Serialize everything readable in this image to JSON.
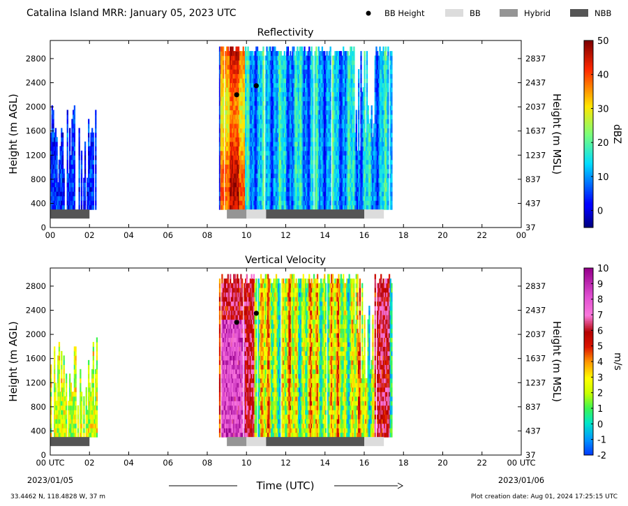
{
  "header": {
    "title": "Catalina Island MRR:  January 05, 2023 UTC",
    "legend": [
      {
        "label": "BB Height",
        "kind": "dot",
        "color": "#000000"
      },
      {
        "label": "BB",
        "kind": "box",
        "color": "#dcdcdc"
      },
      {
        "label": "Hybrid",
        "kind": "box",
        "color": "#959595"
      },
      {
        "label": "NBB",
        "kind": "box",
        "color": "#555555"
      }
    ]
  },
  "footer": {
    "location": "33.4462 N, 118.4828 W, 37 m",
    "creation": "Plot creation date: Aug 01, 2024 17:25:15 UTC",
    "xlabel": "Time (UTC)",
    "date_start": "2023/01/05",
    "date_end": "2023/01/06"
  },
  "chart_data": [
    {
      "type": "heatmap",
      "title": "Reflectivity",
      "ylabel": "Height (m AGL)",
      "y2label": "Height (m MSL)",
      "xlim": [
        0,
        24
      ],
      "ylim": [
        0,
        3100
      ],
      "xticks": [
        "00",
        "02",
        "04",
        "06",
        "08",
        "10",
        "12",
        "14",
        "16",
        "18",
        "20",
        "22",
        "00"
      ],
      "yticks": [
        0,
        400,
        800,
        1200,
        1600,
        2000,
        2400,
        2800
      ],
      "y2ticks": [
        "37",
        "437",
        "837",
        "1237",
        "1637",
        "2037",
        "2437",
        "2837"
      ],
      "colorbar": {
        "label": "dBZ",
        "min": -5,
        "max": 50,
        "ticks": [
          0,
          10,
          20,
          30,
          40,
          50
        ]
      },
      "bb_height_points": [
        {
          "x": 9.5,
          "y": 2200
        },
        {
          "x": 10.5,
          "y": 2350
        }
      ],
      "bb_classification": [
        {
          "class": "NBB",
          "start": 0.0,
          "end": 2.0
        },
        {
          "class": "Hybrid",
          "start": 9.0,
          "end": 10.0
        },
        {
          "class": "BB",
          "start": 10.0,
          "end": 11.0
        },
        {
          "class": "NBB",
          "start": 11.0,
          "end": 16.0
        },
        {
          "class": "BB",
          "start": 16.0,
          "end": 17.0
        }
      ],
      "data_segments": [
        {
          "start": 0.0,
          "end": 2.4,
          "ymin": 300,
          "note": "light echoes up to ~2100 m"
        },
        {
          "start": 8.6,
          "end": 17.4,
          "ymin": 300,
          "ymax": 3000
        }
      ]
    },
    {
      "type": "heatmap",
      "title": "Vertical Velocity",
      "ylabel": "Height (m AGL)",
      "y2label": "Height (m MSL)",
      "xlim": [
        0,
        24
      ],
      "ylim": [
        0,
        3100
      ],
      "xticks": [
        "00 UTC",
        "02",
        "04",
        "06",
        "08",
        "10",
        "12",
        "14",
        "16",
        "18",
        "20",
        "22",
        "00 UTC"
      ],
      "yticks": [
        0,
        400,
        800,
        1200,
        1600,
        2000,
        2400,
        2800
      ],
      "y2ticks": [
        "37",
        "437",
        "837",
        "1237",
        "1637",
        "2037",
        "2437",
        "2837"
      ],
      "colorbar": {
        "label": "m/s",
        "min": -2,
        "max": 10,
        "ticks": [
          -2,
          -1,
          0,
          1,
          2,
          3,
          4,
          5,
          6,
          7,
          8,
          9,
          10
        ]
      },
      "bb_height_points": [
        {
          "x": 9.5,
          "y": 2200
        },
        {
          "x": 10.5,
          "y": 2350
        }
      ],
      "bb_classification": [
        {
          "class": "NBB",
          "start": 0.0,
          "end": 2.0
        },
        {
          "class": "Hybrid",
          "start": 9.0,
          "end": 10.0
        },
        {
          "class": "BB",
          "start": 10.0,
          "end": 11.0
        },
        {
          "class": "NBB",
          "start": 11.0,
          "end": 16.0
        },
        {
          "class": "BB",
          "start": 16.0,
          "end": 17.0
        }
      ],
      "data_segments": [
        {
          "start": 0.0,
          "end": 2.4,
          "ymin": 300,
          "note": "light echoes up to ~2100 m"
        },
        {
          "start": 8.6,
          "end": 17.4,
          "ymin": 300,
          "ymax": 3000
        }
      ]
    }
  ]
}
